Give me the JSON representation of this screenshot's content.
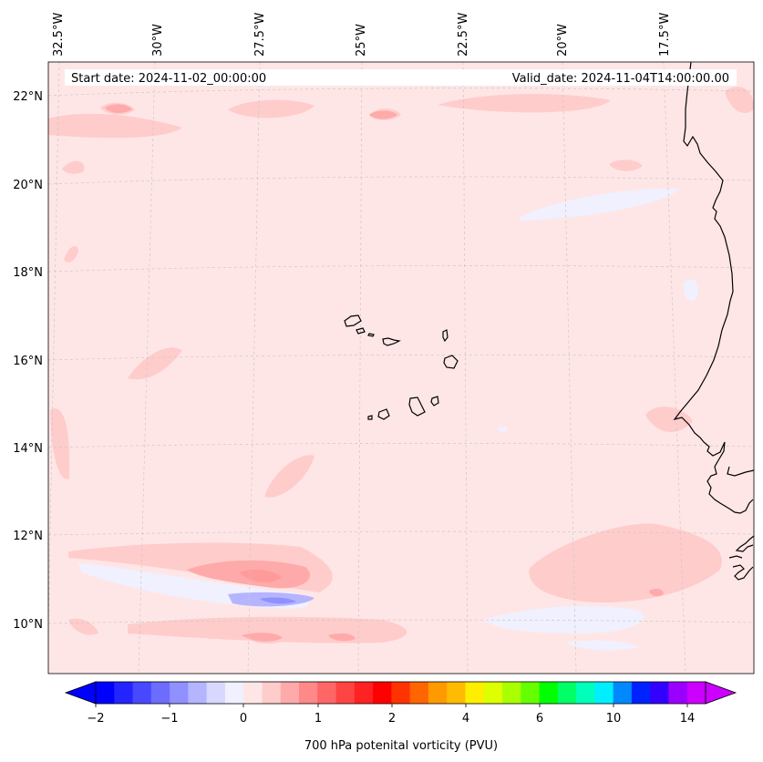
{
  "header": {
    "start_date": "Start date: 2024-11-02_00:00:00",
    "valid_date": "Valid_date: 2024-11-04T14:00:00.00"
  },
  "map": {
    "lon_labels": [
      "32.5°W",
      "30°W",
      "27.5°W",
      "25°W",
      "22.5°W",
      "20°W",
      "17.5°W"
    ],
    "lat_labels": [
      "22°N",
      "20°N",
      "18°N",
      "16°N",
      "14°N",
      "12°N",
      "10°N"
    ],
    "background_color": "#ffe6e6",
    "coastline_color": "#000000",
    "gridline_color": "#c8c8c8"
  },
  "colorbar": {
    "title": "700 hPa potenital vorticity (PVU)",
    "tick_labels": [
      "−2",
      "−1",
      "0",
      "1",
      "2",
      "4",
      "6",
      "10",
      "14"
    ],
    "colors": [
      "#0000ff",
      "#2424ff",
      "#4848ff",
      "#6c6cff",
      "#9090ff",
      "#b4b4ff",
      "#d8d8ff",
      "#f0f0ff",
      "#ffe6e6",
      "#ffcccc",
      "#ffaaaa",
      "#ff8888",
      "#ff6666",
      "#ff4444",
      "#ff2222",
      "#ff0000",
      "#ff3300",
      "#ff6600",
      "#ff9900",
      "#ffbb00",
      "#ffee00",
      "#ddff00",
      "#aaff00",
      "#66ff00",
      "#00ff00",
      "#00ff66",
      "#00ffbb",
      "#00eeff",
      "#0088ff",
      "#0022ff",
      "#3300ff",
      "#9900ff",
      "#cc00ff"
    ]
  }
}
